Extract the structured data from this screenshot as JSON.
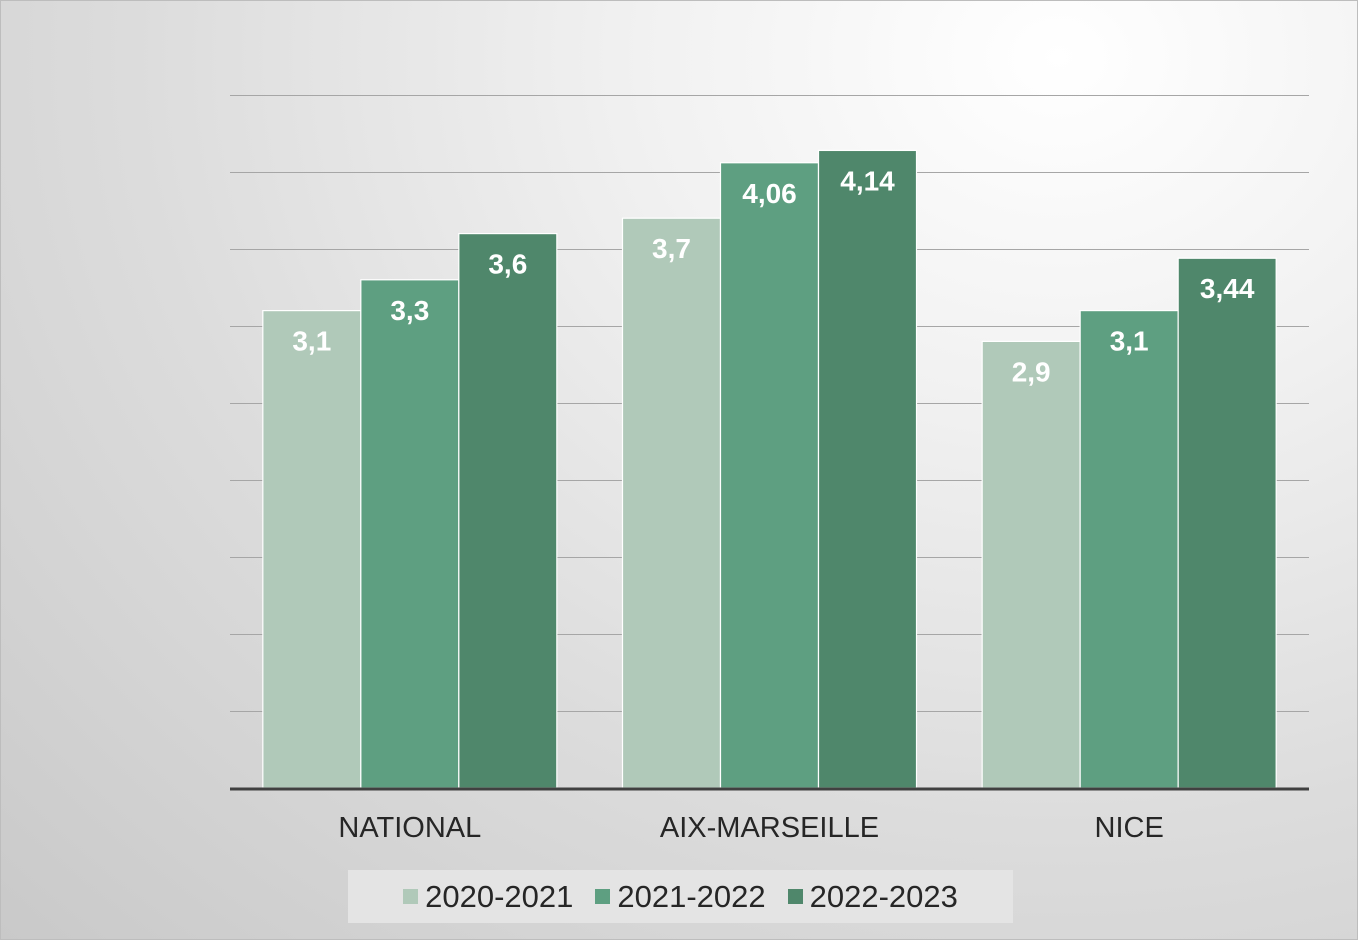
{
  "chart_data": {
    "type": "bar",
    "categories": [
      "NATIONAL",
      "AIX-MARSEILLE",
      "NICE"
    ],
    "series": [
      {
        "name": "2020-2021",
        "values": [
          3.1,
          3.7,
          2.9
        ],
        "labels": [
          "3,1",
          "3,7",
          "2,9"
        ],
        "color": "#b0c9b9"
      },
      {
        "name": "2021-2022",
        "values": [
          3.3,
          4.06,
          3.1
        ],
        "labels": [
          "3,3",
          "4,06",
          "3,1"
        ],
        "color": "#5e9f81"
      },
      {
        "name": "2022-2023",
        "values": [
          3.6,
          4.14,
          3.44
        ],
        "labels": [
          "3,6",
          "4,14",
          "3,44"
        ],
        "color": "#4f876b"
      }
    ],
    "ylim": [
      0,
      4.5
    ],
    "grid": true,
    "legend_position": "bottom",
    "title": "",
    "xlabel": "",
    "ylabel": ""
  }
}
